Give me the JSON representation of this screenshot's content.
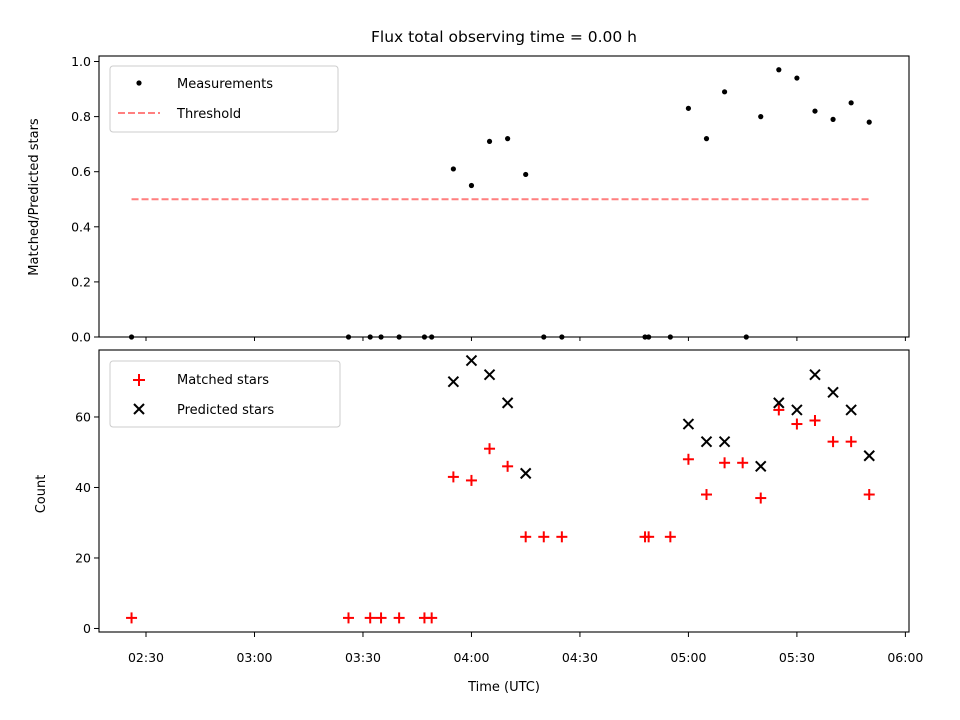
{
  "chart_data": [
    {
      "type": "scatter",
      "title": "Flux total observing time = 0.00 h",
      "xlabel": "",
      "ylabel": "Matched/Predicted stars",
      "xlim": [
        "02:17",
        "06:01"
      ],
      "ylim": [
        0,
        1.02
      ],
      "yticks": [
        0.0,
        0.2,
        0.4,
        0.6,
        0.8,
        1.0
      ],
      "ytick_labels": [
        "0.0",
        "0.2",
        "0.4",
        "0.6",
        "0.8",
        "1.0"
      ],
      "xticks": [
        "02:30",
        "03:00",
        "03:30",
        "04:00",
        "04:30",
        "05:00",
        "05:30",
        "06:00"
      ],
      "legend": {
        "position": "top-left",
        "entries": [
          "Measurements",
          "Threshold"
        ]
      },
      "series": [
        {
          "name": "Measurements",
          "marker": "dot",
          "color": "#000000",
          "x": [
            "02:26",
            "03:26",
            "03:32",
            "03:35",
            "03:40",
            "03:47",
            "03:49",
            "03:55",
            "04:00",
            "04:05",
            "04:10",
            "04:15",
            "04:20",
            "04:25",
            "04:48",
            "04:49",
            "04:55",
            "05:00",
            "05:05",
            "05:10",
            "05:16",
            "05:20",
            "05:25",
            "05:30",
            "05:35",
            "05:40",
            "05:45",
            "05:50"
          ],
          "y": [
            0.0,
            0.0,
            0.0,
            0.0,
            0.0,
            0.0,
            0.0,
            0.61,
            0.55,
            0.71,
            0.72,
            0.59,
            0.0,
            0.0,
            0.0,
            0.0,
            0.0,
            0.83,
            0.72,
            0.89,
            0.0,
            0.8,
            0.97,
            0.94,
            0.82,
            0.79,
            0.85,
            0.78
          ]
        },
        {
          "name": "Threshold",
          "marker": "dashed-line",
          "color": "#ff7f7f",
          "x": [
            "02:26",
            "05:50"
          ],
          "y": [
            0.5,
            0.5
          ]
        }
      ]
    },
    {
      "type": "scatter",
      "title": "",
      "xlabel": "Time (UTC)",
      "ylabel": "Count",
      "xlim": [
        "02:17",
        "06:01"
      ],
      "ylim": [
        -1,
        79
      ],
      "yticks": [
        0,
        20,
        40,
        60
      ],
      "ytick_labels": [
        "0",
        "20",
        "40",
        "60"
      ],
      "xticks": [
        "02:30",
        "03:00",
        "03:30",
        "04:00",
        "04:30",
        "05:00",
        "05:30",
        "06:00"
      ],
      "xtick_labels": [
        "02:30",
        "03:00",
        "03:30",
        "04:00",
        "04:30",
        "05:00",
        "05:30",
        "06:00"
      ],
      "legend": {
        "position": "top-left",
        "entries": [
          "Matched stars",
          "Predicted stars"
        ]
      },
      "series": [
        {
          "name": "Matched stars",
          "marker": "plus",
          "color": "#ff0000",
          "x": [
            "02:26",
            "03:26",
            "03:32",
            "03:35",
            "03:40",
            "03:47",
            "03:49",
            "03:55",
            "04:00",
            "04:05",
            "04:10",
            "04:15",
            "04:20",
            "04:25",
            "04:48",
            "04:49",
            "04:55",
            "05:00",
            "05:05",
            "05:10",
            "05:15",
            "05:20",
            "05:25",
            "05:30",
            "05:35",
            "05:40",
            "05:45",
            "05:50"
          ],
          "y": [
            3,
            3,
            3,
            3,
            3,
            3,
            3,
            43,
            42,
            51,
            46,
            26,
            26,
            26,
            26,
            26,
            26,
            48,
            38,
            47,
            47,
            37,
            62,
            58,
            59,
            53,
            53,
            38
          ]
        },
        {
          "name": "Predicted stars",
          "marker": "x",
          "color": "#000000",
          "x": [
            "03:55",
            "04:00",
            "04:05",
            "04:10",
            "04:15",
            "05:00",
            "05:05",
            "05:10",
            "05:20",
            "05:25",
            "05:30",
            "05:35",
            "05:40",
            "05:45",
            "05:50"
          ],
          "y": [
            70,
            76,
            72,
            64,
            44,
            58,
            53,
            53,
            46,
            64,
            62,
            72,
            67,
            62,
            49
          ]
        }
      ]
    }
  ]
}
